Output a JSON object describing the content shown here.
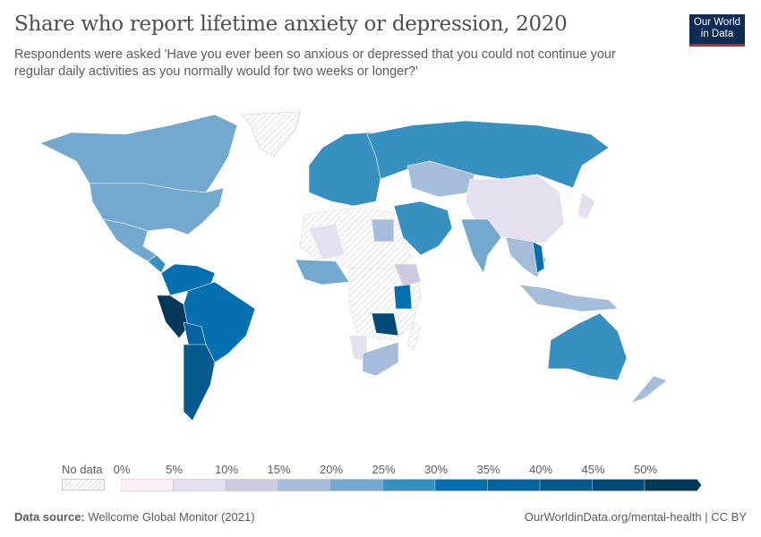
{
  "header": {
    "title": "Share who report lifetime anxiety or depression, 2020",
    "subtitle": "Respondents were asked 'Have you ever been so anxious or depressed that you could not continue your regular daily activities as you normally would for two weeks or longer?'",
    "logo_text": "Our World in Data"
  },
  "legend": {
    "no_data_label": "No data",
    "ticks": [
      "0%",
      "5%",
      "10%",
      "15%",
      "20%",
      "25%",
      "30%",
      "35%",
      "40%",
      "45%",
      "50%"
    ],
    "bin_colors": [
      "#fdf0f6",
      "#e5e0ef",
      "#cdcae2",
      "#a6bcdb",
      "#73a8cf",
      "#3690c0",
      "#0570b0",
      "#04649f",
      "#045a8d",
      "#034a79",
      "#023858"
    ],
    "no_data_color": "#e8e8e8"
  },
  "footer": {
    "source_label": "Data source:",
    "source_text": "Wellcome Global Monitor (2021)",
    "url": "OurWorldinData.org/mental-health | CC BY"
  }
}
